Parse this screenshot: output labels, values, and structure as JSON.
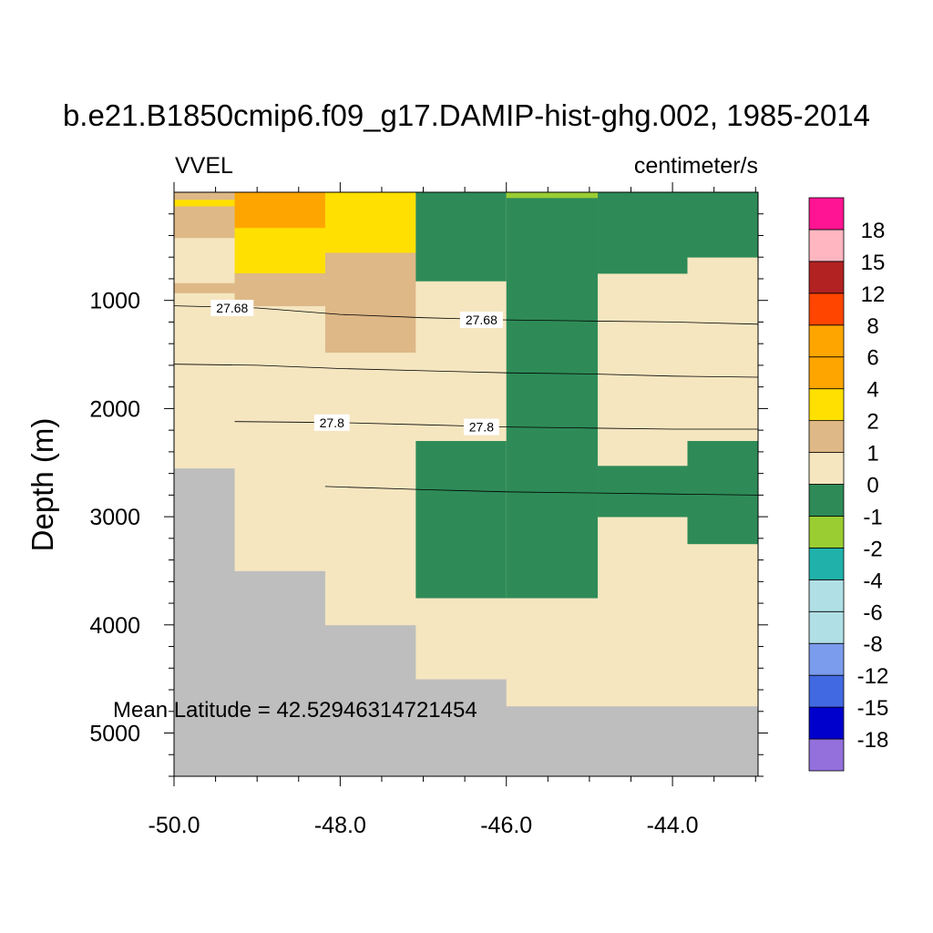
{
  "chart_data": {
    "type": "heatmap",
    "title": "b.e21.B1850cmip6.f09_g17.DAMIP-hist-ghg.002, 1985-2014",
    "left_label": "VVEL",
    "right_label": "centimeter/s",
    "ylabel": "Depth (m)",
    "xlabel": "",
    "annotation": "Mean Latitude = 42.52946314721454",
    "xlim": [
      -50.0,
      -42.97
    ],
    "ylim": [
      5400,
      0
    ],
    "x_ticks": [
      -50.0,
      -48.0,
      -46.0,
      -44.0
    ],
    "x_tick_labels": [
      "-50.0",
      "-48.0",
      "-46.0",
      "-44.0"
    ],
    "y_ticks": [
      1000,
      2000,
      3000,
      4000,
      5000
    ],
    "y_tick_labels": [
      "1000",
      "2000",
      "3000",
      "4000",
      "5000"
    ],
    "missing_color": "#bebebe",
    "levels": [
      "-18",
      "-15",
      "-12",
      "-8",
      "-6",
      "-4",
      "-2",
      "-1",
      "0",
      "1",
      "2",
      "4",
      "6",
      "8",
      "12",
      "15",
      "18"
    ],
    "colorbar_colors": [
      "#9370db",
      "#0000cd",
      "#4169e1",
      "#7b9ced",
      "#b0e0e6",
      "#b0e0e6",
      "#20b2aa",
      "#9acd32",
      "#2e8b57",
      "#f5e6c0",
      "#deb887",
      "#ffe000",
      "#ffa500",
      "#ffa500",
      "#ff4500",
      "#b22222",
      "#ffb6c1",
      "#ff1493"
    ],
    "cells": [
      {
        "x0": -50.0,
        "x1": -42.97,
        "y0": 0,
        "y1": 5400,
        "color": "#bebebe"
      },
      {
        "x0": -50.0,
        "x1": -49.27,
        "y0": 0,
        "y1": 2550,
        "color": "#f5e6c0"
      },
      {
        "x0": -50.0,
        "x1": -49.27,
        "y0": 0,
        "y1": 70,
        "color": "#deb887"
      },
      {
        "x0": -50.0,
        "x1": -49.27,
        "y0": 70,
        "y1": 130,
        "color": "#ffe000"
      },
      {
        "x0": -50.0,
        "x1": -49.27,
        "y0": 130,
        "y1": 420,
        "color": "#deb887"
      },
      {
        "x0": -50.0,
        "x1": -49.27,
        "y0": 840,
        "y1": 930,
        "color": "#deb887"
      },
      {
        "x0": -49.27,
        "x1": -48.18,
        "y0": 0,
        "y1": 3500,
        "color": "#f5e6c0"
      },
      {
        "x0": -49.27,
        "x1": -48.18,
        "y0": 0,
        "y1": 330,
        "color": "#ffa500"
      },
      {
        "x0": -49.27,
        "x1": -48.18,
        "y0": 330,
        "y1": 750,
        "color": "#ffe000"
      },
      {
        "x0": -49.27,
        "x1": -48.18,
        "y0": 750,
        "y1": 1050,
        "color": "#deb887"
      },
      {
        "x0": -48.18,
        "x1": -47.09,
        "y0": 0,
        "y1": 4000,
        "color": "#f5e6c0"
      },
      {
        "x0": -48.18,
        "x1": -47.09,
        "y0": 0,
        "y1": 560,
        "color": "#ffe000"
      },
      {
        "x0": -48.18,
        "x1": -47.09,
        "y0": 560,
        "y1": 1480,
        "color": "#deb887"
      },
      {
        "x0": -47.09,
        "x1": -46.0,
        "y0": 0,
        "y1": 4500,
        "color": "#f5e6c0"
      },
      {
        "x0": -47.09,
        "x1": -46.0,
        "y0": 0,
        "y1": 820,
        "color": "#2e8b57"
      },
      {
        "x0": -47.09,
        "x1": -46.0,
        "y0": 2300,
        "y1": 3750,
        "color": "#2e8b57"
      },
      {
        "x0": -46.0,
        "x1": -44.9,
        "y0": 0,
        "y1": 4750,
        "color": "#f5e6c0"
      },
      {
        "x0": -46.0,
        "x1": -44.9,
        "y0": 0,
        "y1": 3750,
        "color": "#2e8b57"
      },
      {
        "x0": -46.0,
        "x1": -44.9,
        "y0": 0,
        "y1": 50,
        "color": "#9acd32"
      },
      {
        "x0": -44.9,
        "x1": -43.82,
        "y0": 0,
        "y1": 4750,
        "color": "#f5e6c0"
      },
      {
        "x0": -44.9,
        "x1": -43.82,
        "y0": 0,
        "y1": 750,
        "color": "#2e8b57"
      },
      {
        "x0": -44.9,
        "x1": -43.82,
        "y0": 2530,
        "y1": 3000,
        "color": "#2e8b57"
      },
      {
        "x0": -43.82,
        "x1": -42.97,
        "y0": 0,
        "y1": 4750,
        "color": "#f5e6c0"
      },
      {
        "x0": -43.82,
        "x1": -42.97,
        "y0": 0,
        "y1": 600,
        "color": "#2e8b57"
      },
      {
        "x0": -43.82,
        "x1": -42.97,
        "y0": 2300,
        "y1": 3250,
        "color": "#2e8b57"
      }
    ],
    "contours": [
      {
        "points": [
          [
            -50.0,
            1050
          ],
          [
            -49.0,
            1070
          ],
          [
            -48.0,
            1130
          ],
          [
            -47.0,
            1160
          ],
          [
            -46.0,
            1180
          ],
          [
            -45.0,
            1190
          ],
          [
            -44.0,
            1200
          ],
          [
            -42.97,
            1220
          ]
        ],
        "label": "27.68",
        "label_positions": [
          [
            -49.3,
            1070
          ],
          [
            -46.3,
            1180
          ]
        ]
      },
      {
        "points": [
          [
            -50.0,
            1590
          ],
          [
            -49.0,
            1600
          ],
          [
            -48.0,
            1630
          ],
          [
            -47.0,
            1650
          ],
          [
            -46.0,
            1670
          ],
          [
            -45.0,
            1680
          ],
          [
            -44.0,
            1700
          ],
          [
            -42.97,
            1710
          ]
        ],
        "label": "",
        "label_positions": []
      },
      {
        "points": [
          [
            -49.27,
            2120
          ],
          [
            -48.0,
            2130
          ],
          [
            -47.0,
            2150
          ],
          [
            -46.0,
            2170
          ],
          [
            -45.0,
            2180
          ],
          [
            -44.0,
            2190
          ],
          [
            -42.97,
            2190
          ]
        ],
        "label": "27.8",
        "label_positions": [
          [
            -48.1,
            2130
          ],
          [
            -46.3,
            2170
          ]
        ]
      },
      {
        "points": [
          [
            -48.18,
            2720
          ],
          [
            -47.0,
            2750
          ],
          [
            -46.0,
            2770
          ],
          [
            -45.0,
            2780
          ],
          [
            -44.0,
            2790
          ],
          [
            -42.97,
            2800
          ]
        ],
        "label": "",
        "label_positions": []
      }
    ]
  }
}
